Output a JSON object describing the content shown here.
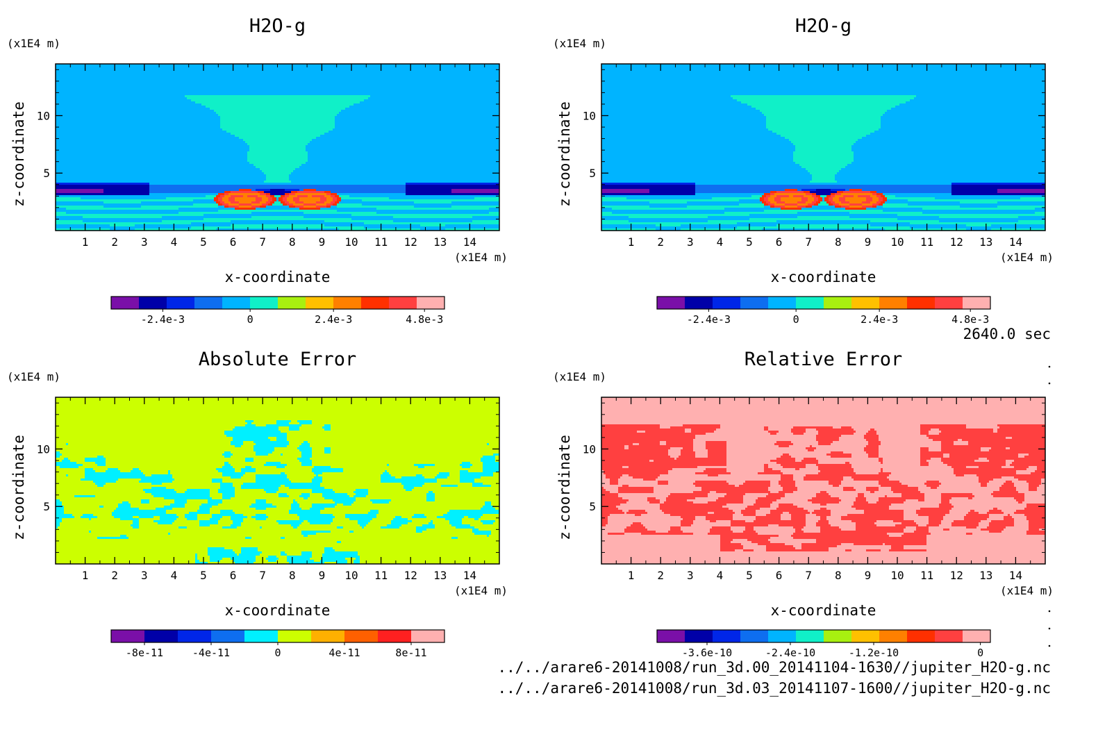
{
  "panels": [
    {
      "title": "H2O-g",
      "xlabel": "x-coordinate",
      "ylabel": "z-coordinate",
      "x_unit": "(x1E4 m)",
      "y_unit": "(x1E4 m)",
      "x_ticks": [
        "1",
        "2",
        "3",
        "4",
        "5",
        "6",
        "7",
        "8",
        "9",
        "10",
        "11",
        "12",
        "13",
        "14"
      ],
      "y_ticks": [
        "5",
        "10"
      ],
      "colorbar": {
        "colors": [
          "#7a0fa8",
          "#0000a8",
          "#0026e8",
          "#0e6ef0",
          "#00b4ff",
          "#10f0c8",
          "#a8f010",
          "#ffc000",
          "#ff8000",
          "#ff3000",
          "#ff4040",
          "#ffb0b0"
        ],
        "labels": [
          "-2.4e-3",
          "0",
          "2.4e-3",
          "4.8e-3"
        ]
      },
      "field": "h2o"
    },
    {
      "title": "H2O-g",
      "xlabel": "x-coordinate",
      "ylabel": "z-coordinate",
      "x_unit": "(x1E4 m)",
      "y_unit": "(x1E4 m)",
      "x_ticks": [
        "1",
        "2",
        "3",
        "4",
        "5",
        "6",
        "7",
        "8",
        "9",
        "10",
        "11",
        "12",
        "13",
        "14"
      ],
      "y_ticks": [
        "5",
        "10"
      ],
      "colorbar": {
        "colors": [
          "#7a0fa8",
          "#0000a8",
          "#0026e8",
          "#0e6ef0",
          "#00b4ff",
          "#10f0c8",
          "#a8f010",
          "#ffc000",
          "#ff8000",
          "#ff3000",
          "#ff4040",
          "#ffb0b0"
        ],
        "labels": [
          "-2.4e-3",
          "0",
          "2.4e-3",
          "4.8e-3"
        ]
      },
      "field": "h2o"
    },
    {
      "title": "Absolute Error",
      "xlabel": "x-coordinate",
      "ylabel": "z-coordinate",
      "x_unit": "(x1E4 m)",
      "y_unit": "(x1E4 m)",
      "x_ticks": [
        "1",
        "2",
        "3",
        "4",
        "5",
        "6",
        "7",
        "8",
        "9",
        "10",
        "11",
        "12",
        "13",
        "14"
      ],
      "y_ticks": [
        "5",
        "10"
      ],
      "colorbar": {
        "colors": [
          "#7a0fa8",
          "#0000a8",
          "#0026e8",
          "#0e6ef0",
          "#00f0ff",
          "#ccff00",
          "#ffb000",
          "#ff6000",
          "#ff2020",
          "#ffb0b0"
        ],
        "labels": [
          "-8e-11",
          "-4e-11",
          "0",
          "4e-11",
          "8e-11"
        ]
      },
      "field": "abs"
    },
    {
      "title": "Relative Error",
      "xlabel": "x-coordinate",
      "ylabel": "z-coordinate",
      "x_unit": "(x1E4 m)",
      "y_unit": "(x1E4 m)",
      "x_ticks": [
        "1",
        "2",
        "3",
        "4",
        "5",
        "6",
        "7",
        "8",
        "9",
        "10",
        "11",
        "12",
        "13",
        "14"
      ],
      "y_ticks": [
        "5",
        "10"
      ],
      "colorbar": {
        "colors": [
          "#7a0fa8",
          "#0000a8",
          "#0026e8",
          "#0e6ef0",
          "#00b4ff",
          "#10f0c8",
          "#a8f010",
          "#ffc000",
          "#ff8000",
          "#ff3000",
          "#ff4040",
          "#ffb0b0"
        ],
        "labels": [
          "-3.6e-10",
          "-2.4e-10",
          "-1.2e-10",
          "0"
        ]
      },
      "field": "rel"
    }
  ],
  "time_label": "2640.0 sec",
  "file_paths": [
    "../../arare6-20141008/run_3d.00_20141104-1630//jupiter_H2O-g.nc",
    "../../arare6-20141008/run_3d.03_20141107-1600//jupiter_H2O-g.nc"
  ],
  "chart_data": [
    {
      "type": "heatmap",
      "title": "H2O-g",
      "xlabel": "x-coordinate",
      "ylabel": "z-coordinate",
      "x_unit": "(x1E4 m)",
      "y_unit": "(x1E4 m)",
      "xlim": [
        0,
        15
      ],
      "ylim": [
        0,
        14.5
      ],
      "colorbar_ticks": [
        -0.0024,
        0,
        0.0024,
        0.0048
      ]
    },
    {
      "type": "heatmap",
      "title": "H2O-g",
      "xlabel": "x-coordinate",
      "ylabel": "z-coordinate",
      "x_unit": "(x1E4 m)",
      "y_unit": "(x1E4 m)",
      "xlim": [
        0,
        15
      ],
      "ylim": [
        0,
        14.5
      ],
      "colorbar_ticks": [
        -0.0024,
        0,
        0.0024,
        0.0048
      ]
    },
    {
      "type": "heatmap",
      "title": "Absolute Error",
      "xlabel": "x-coordinate",
      "ylabel": "z-coordinate",
      "x_unit": "(x1E4 m)",
      "y_unit": "(x1E4 m)",
      "xlim": [
        0,
        15
      ],
      "ylim": [
        0,
        14.5
      ],
      "colorbar_ticks": [
        -8e-11,
        -4e-11,
        0,
        4e-11,
        8e-11
      ]
    },
    {
      "type": "heatmap",
      "title": "Relative Error",
      "xlabel": "x-coordinate",
      "ylabel": "z-coordinate",
      "x_unit": "(x1E4 m)",
      "y_unit": "(x1E4 m)",
      "xlim": [
        0,
        15
      ],
      "ylim": [
        0,
        14.5
      ],
      "colorbar_ticks": [
        -3.6e-10,
        -2.4e-10,
        -1.2e-10,
        0
      ]
    }
  ]
}
